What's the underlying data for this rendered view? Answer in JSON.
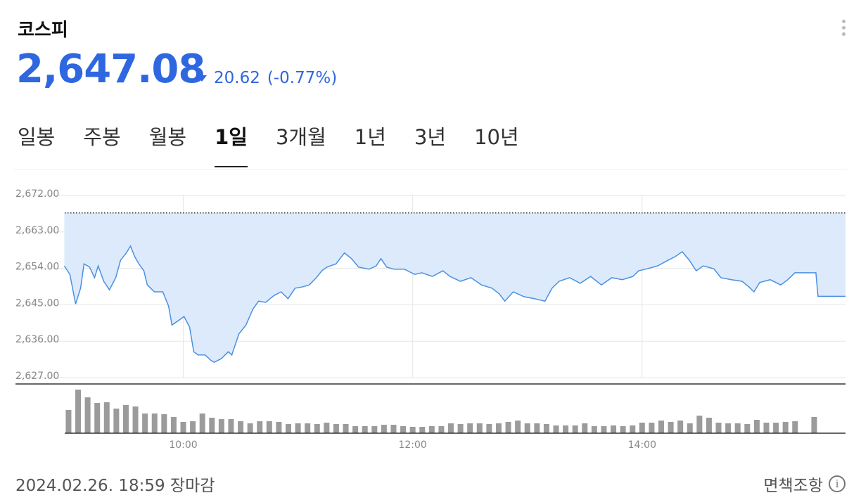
{
  "header": {
    "title": "코스피",
    "price": "2,647.08",
    "change": "20.62",
    "change_pct": "(-0.77%)"
  },
  "tabs": [
    "일봉",
    "주봉",
    "월봉",
    "1일",
    "3개월",
    "1년",
    "3년",
    "10년"
  ],
  "footer": {
    "timestamp": "2024.02.26. 18:59 장마감",
    "disclaimer": "면책조항"
  },
  "chart_data": [
    {
      "type": "line",
      "color": "#4a90e2",
      "fill_color": "#dceafb",
      "grid": true,
      "reference_line": 2667.7,
      "xlim": [
        538,
        946.4
      ],
      "xticks": [
        {
          "value": 600,
          "label": "10:00"
        },
        {
          "value": 720,
          "label": "12:00"
        },
        {
          "value": 840,
          "label": "14:00"
        }
      ],
      "ylim": [
        2627,
        2672
      ],
      "yticks": [
        {
          "value": 2627,
          "label": "2,627.00"
        },
        {
          "value": 2636,
          "label": "2,636.00"
        },
        {
          "value": 2645,
          "label": "2,645.00"
        },
        {
          "value": 2654,
          "label": "2,654.00"
        },
        {
          "value": 2663,
          "label": "2,663.00"
        },
        {
          "value": 2672,
          "label": "2,672.00"
        }
      ],
      "x": [
        537.8,
        540.7,
        543.7,
        546.3,
        548.1,
        551,
        553.6,
        555.5,
        558.4,
        561.4,
        564.7,
        567.2,
        570.2,
        572.4,
        574.6,
        576.8,
        579.4,
        581.2,
        584.9,
        589.3,
        592.3,
        594.1,
        597.8,
        600.4,
        603.3,
        605.5,
        607.7,
        611.4,
        614.4,
        616.2,
        619.9,
        623.6,
        625.4,
        629.1,
        632.8,
        636.4,
        639.4,
        643.1,
        647.5,
        651.2,
        654.8,
        658.5,
        662.2,
        665.9,
        669.6,
        672.5,
        675.1,
        679.9,
        684.3,
        688,
        691.7,
        697.2,
        700.9,
        703.4,
        706.4,
        710.1,
        715.6,
        721.1,
        724.8,
        730.3,
        735.8,
        739.5,
        745,
        750.5,
        756,
        761.5,
        765.3,
        768.2,
        772.6,
        778.2,
        783.7,
        789.2,
        792.9,
        796.6,
        802.1,
        807.6,
        813.1,
        818.7,
        824.2,
        829.7,
        835.2,
        838.2,
        842.6,
        848.1,
        853.6,
        857.3,
        861,
        864.7,
        868.3,
        872,
        877.5,
        881.2,
        886.7,
        892.3,
        895.9,
        898.5,
        901.5,
        907,
        912.5,
        916.2,
        919.9,
        930.9,
        932,
        946.4
      ],
      "values": [
        2654.6,
        2652.5,
        2645.2,
        2649.1,
        2655.1,
        2654.3,
        2651.7,
        2654.6,
        2650.8,
        2648.7,
        2651.7,
        2656,
        2657.8,
        2659.5,
        2656.9,
        2655.1,
        2653.4,
        2649.9,
        2648.2,
        2648.2,
        2644.7,
        2640,
        2641.2,
        2642.1,
        2639.5,
        2633.4,
        2632.6,
        2632.6,
        2631.3,
        2630.8,
        2631.7,
        2633.4,
        2632.6,
        2637.8,
        2640,
        2643.9,
        2645.9,
        2645.6,
        2647.3,
        2648.2,
        2646.5,
        2649.1,
        2649.4,
        2649.9,
        2651.7,
        2653.4,
        2654.3,
        2655.1,
        2657.8,
        2656.4,
        2654.3,
        2653.8,
        2654.6,
        2656.4,
        2654.3,
        2653.8,
        2653.8,
        2652.5,
        2652.9,
        2652,
        2653.4,
        2652,
        2650.8,
        2651.7,
        2649.9,
        2649.1,
        2647.7,
        2645.9,
        2648.2,
        2647,
        2646.5,
        2645.9,
        2649.1,
        2650.8,
        2651.7,
        2650.3,
        2652,
        2649.9,
        2651.7,
        2651.2,
        2652,
        2653.4,
        2653.9,
        2654.6,
        2656,
        2656.9,
        2658.1,
        2656,
        2653.4,
        2654.6,
        2653.9,
        2651.7,
        2651.2,
        2650.8,
        2649.4,
        2648.2,
        2650.5,
        2651.2,
        2649.9,
        2651.2,
        2652.9,
        2652.9,
        2647.1,
        2647.1
      ]
    },
    {
      "type": "bar",
      "color": "#9b9b9b",
      "xlim": [
        538,
        946.4
      ],
      "ylim": [
        0,
        70
      ],
      "x": [
        540,
        545,
        550,
        555,
        560,
        565,
        570,
        575,
        580,
        585,
        590,
        595,
        600,
        605,
        610,
        615,
        620,
        625,
        630,
        635,
        640,
        645,
        650,
        655,
        660,
        665,
        670,
        675,
        680,
        685,
        690,
        695,
        700,
        705,
        710,
        715,
        720,
        725,
        730,
        735,
        740,
        745,
        750,
        755,
        760,
        765,
        770,
        775,
        780,
        785,
        790,
        795,
        800,
        805,
        810,
        815,
        820,
        825,
        830,
        835,
        840,
        845,
        850,
        855,
        860,
        865,
        870,
        875,
        880,
        885,
        890,
        895,
        900,
        905,
        910,
        915,
        920,
        930
      ],
      "values": [
        33,
        62,
        51,
        43,
        44,
        35,
        40,
        38,
        28,
        28,
        27,
        23,
        16,
        17,
        28,
        22,
        20,
        20,
        17,
        14,
        17,
        17,
        16,
        13,
        14,
        14,
        13,
        15,
        13,
        13,
        10,
        10,
        10,
        12,
        12,
        10,
        9,
        9,
        10,
        10,
        14,
        13,
        14,
        14,
        13,
        14,
        16,
        18,
        14,
        14,
        13,
        11,
        11,
        11,
        14,
        10,
        10,
        11,
        10,
        11,
        15,
        15,
        18,
        16,
        18,
        14,
        25,
        22,
        15,
        14,
        14,
        13,
        19,
        15,
        15,
        16,
        17,
        23
      ]
    }
  ]
}
